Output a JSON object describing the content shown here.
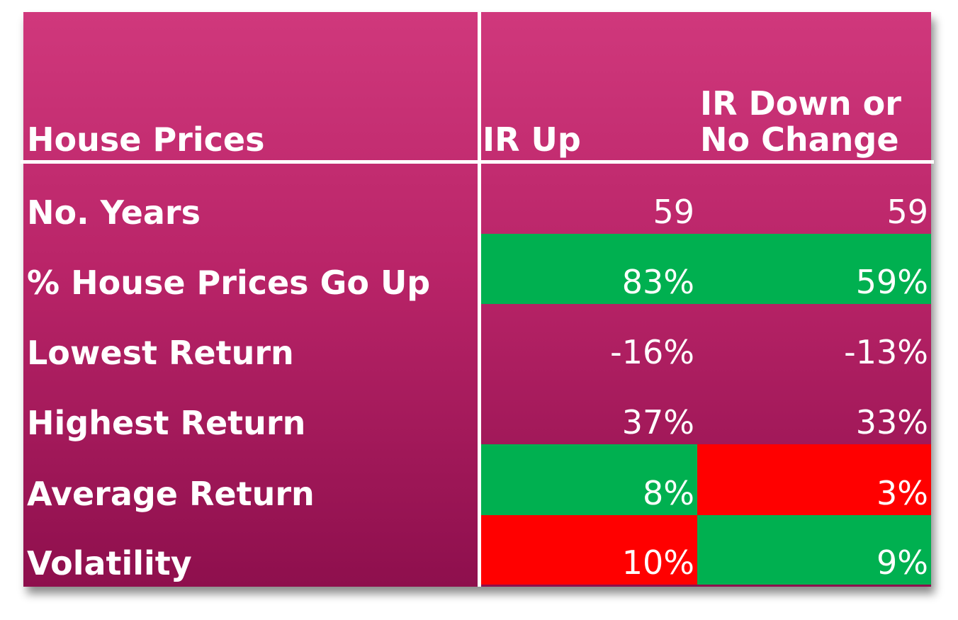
{
  "header": {
    "col1": "House Prices",
    "col2": "IR Up",
    "col3_line1": "IR Down or",
    "col3_line2": "No Change"
  },
  "rows": [
    {
      "label": "No. Years",
      "ir_up": "59",
      "ir_down": "59",
      "ir_up_color": "none",
      "ir_down_color": "none"
    },
    {
      "label": "% House Prices Go Up",
      "ir_up": "83%",
      "ir_down": "59%",
      "ir_up_color": "green",
      "ir_down_color": "green"
    },
    {
      "label": "Lowest Return",
      "ir_up": "-16%",
      "ir_down": "-13%",
      "ir_up_color": "none",
      "ir_down_color": "none"
    },
    {
      "label": "Highest Return",
      "ir_up": "37%",
      "ir_down": "33%",
      "ir_up_color": "none",
      "ir_down_color": "none"
    },
    {
      "label": "Average Return",
      "ir_up": "8%",
      "ir_down": "3%",
      "ir_up_color": "green",
      "ir_down_color": "red"
    },
    {
      "label": "Volatility",
      "ir_up": "10%",
      "ir_down": "9%",
      "ir_up_color": "red",
      "ir_down_color": "green"
    }
  ],
  "colors": {
    "green": "#00b050",
    "red": "#ff0000",
    "background_top": "#d0387c",
    "background_bottom": "#8e0f4d"
  }
}
